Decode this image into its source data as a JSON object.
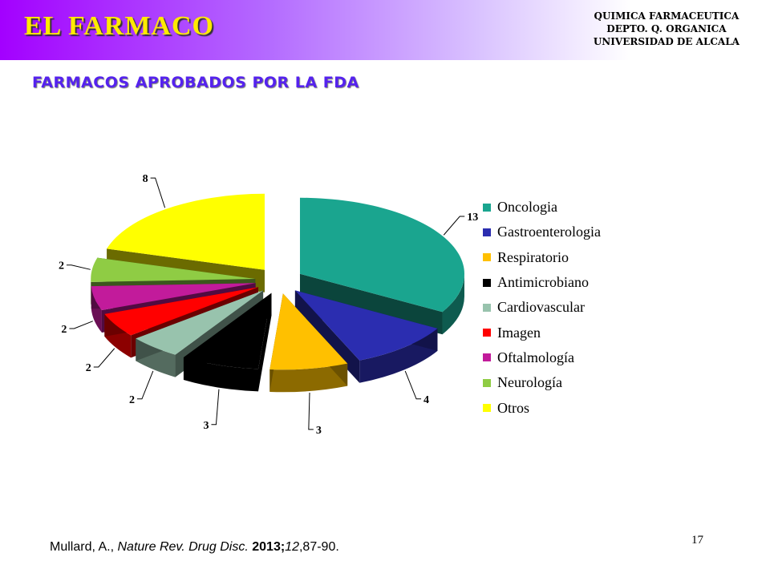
{
  "header": {
    "title": "EL FARMACO",
    "org_lines": [
      "QUIMICA FARMACEUTICA",
      "DEPTO. Q. ORGANICA",
      "UNIVERSIDAD DE ALCALA"
    ]
  },
  "subtitle": "FARMACOS APROBADOS POR LA FDA",
  "chart_data": {
    "type": "pie",
    "style": "3d-exploded",
    "categories": [
      "Oncologia",
      "Gastroenterologia",
      "Respiratorio",
      "Antimicrobiano",
      "Cardiovascular",
      "Imagen",
      "Oftalmología",
      "Neurología",
      "Otros"
    ],
    "values": [
      13,
      4,
      3,
      3,
      2,
      2,
      2,
      2,
      8
    ],
    "colors": [
      "#1aa58f",
      "#2b2db0",
      "#ffc000",
      "#000000",
      "#98c3ad",
      "#ff0000",
      "#c21b9b",
      "#8fcc44",
      "#ffff00"
    ],
    "legend_position": "right"
  },
  "citation": {
    "author": "Mullard, A., ",
    "journal": "Nature Rev. Drug Disc.",
    "year": " 2013;",
    "volume": "12",
    "pages": ",87-90."
  },
  "page_number": "17"
}
